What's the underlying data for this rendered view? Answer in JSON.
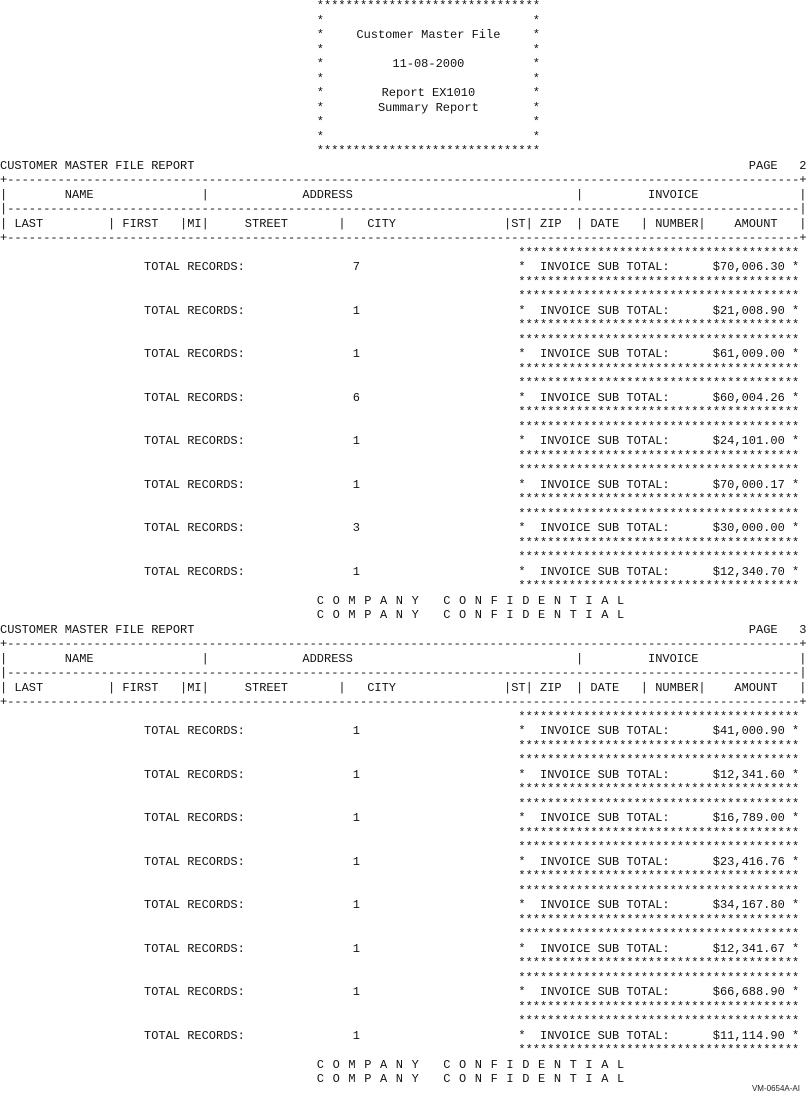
{
  "banner": {
    "title": "Customer Master File",
    "date": "11-08-2000",
    "report": "Report EX1010",
    "subtitle": "Summary Report"
  },
  "pages": [
    {
      "header_title": "CUSTOMER MASTER FILE REPORT",
      "page_label": "PAGE",
      "page_number": "2",
      "column_groups": [
        "NAME",
        "ADDRESS",
        "INVOICE"
      ],
      "columns": [
        "LAST",
        "FIRST",
        "MI",
        "STREET",
        "CITY",
        "ST",
        "ZIP",
        "DATE",
        "NUMBER",
        "AMOUNT"
      ],
      "rows": [
        {
          "label": "TOTAL RECORDS:",
          "count": "7",
          "subtotal_label": "INVOICE SUB TOTAL:",
          "amount": "$70,006.30"
        },
        {
          "label": "TOTAL RECORDS:",
          "count": "1",
          "subtotal_label": "INVOICE SUB TOTAL:",
          "amount": "$21,008.90"
        },
        {
          "label": "TOTAL RECORDS:",
          "count": "1",
          "subtotal_label": "INVOICE SUB TOTAL:",
          "amount": "$61,009.00"
        },
        {
          "label": "TOTAL RECORDS:",
          "count": "6",
          "subtotal_label": "INVOICE SUB TOTAL:",
          "amount": "$60,004.26"
        },
        {
          "label": "TOTAL RECORDS:",
          "count": "1",
          "subtotal_label": "INVOICE SUB TOTAL:",
          "amount": "$24,101.00"
        },
        {
          "label": "TOTAL RECORDS:",
          "count": "1",
          "subtotal_label": "INVOICE SUB TOTAL:",
          "amount": "$70,000.17"
        },
        {
          "label": "TOTAL RECORDS:",
          "count": "3",
          "subtotal_label": "INVOICE SUB TOTAL:",
          "amount": "$30,000.00"
        },
        {
          "label": "TOTAL RECORDS:",
          "count": "1",
          "subtotal_label": "INVOICE SUB TOTAL:",
          "amount": "$12,340.70"
        }
      ],
      "footer": [
        "COMPANY CONFIDENTIAL",
        "COMPANY CONFIDENTIAL"
      ]
    },
    {
      "header_title": "CUSTOMER MASTER FILE REPORT",
      "page_label": "PAGE",
      "page_number": "3",
      "column_groups": [
        "NAME",
        "ADDRESS",
        "INVOICE"
      ],
      "columns": [
        "LAST",
        "FIRST",
        "MI",
        "STREET",
        "CITY",
        "ST",
        "ZIP",
        "DATE",
        "NUMBER",
        "AMOUNT"
      ],
      "rows": [
        {
          "label": "TOTAL RECORDS:",
          "count": "1",
          "subtotal_label": "INVOICE SUB TOTAL:",
          "amount": "$41,000.90"
        },
        {
          "label": "TOTAL RECORDS:",
          "count": "1",
          "subtotal_label": "INVOICE SUB TOTAL:",
          "amount": "$12,341.60"
        },
        {
          "label": "TOTAL RECORDS:",
          "count": "1",
          "subtotal_label": "INVOICE SUB TOTAL:",
          "amount": "$16,789.00"
        },
        {
          "label": "TOTAL RECORDS:",
          "count": "1",
          "subtotal_label": "INVOICE SUB TOTAL:",
          "amount": "$23,416.76"
        },
        {
          "label": "TOTAL RECORDS:",
          "count": "1",
          "subtotal_label": "INVOICE SUB TOTAL:",
          "amount": "$34,167.80"
        },
        {
          "label": "TOTAL RECORDS:",
          "count": "1",
          "subtotal_label": "INVOICE SUB TOTAL:",
          "amount": "$12,341.67"
        },
        {
          "label": "TOTAL RECORDS:",
          "count": "1",
          "subtotal_label": "INVOICE SUB TOTAL:",
          "amount": "$66,688.90"
        },
        {
          "label": "TOTAL RECORDS:",
          "count": "1",
          "subtotal_label": "INVOICE SUB TOTAL:",
          "amount": "$11,114.90"
        }
      ],
      "footer": [
        "COMPANY CONFIDENTIAL",
        "COMPANY CONFIDENTIAL"
      ]
    }
  ],
  "figure_id": "VM-0654A-AI"
}
